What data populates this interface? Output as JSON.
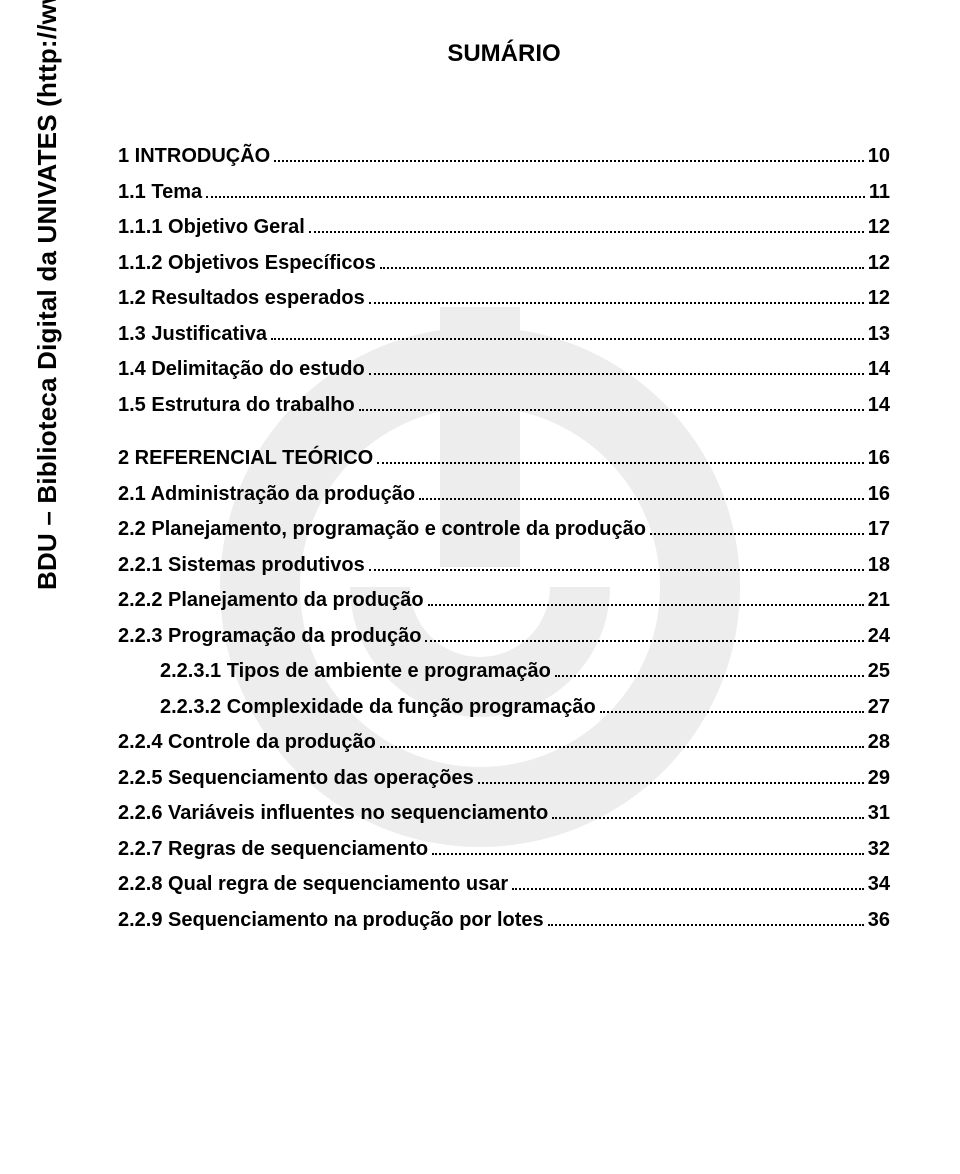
{
  "sidebar": {
    "text": "BDU – Biblioteca Digital da UNIVATES (http://www.univates.br/bdu)"
  },
  "title": "SUMÁRIO",
  "watermark": {
    "color": "#555555",
    "opacity": 0.1
  },
  "toc": [
    {
      "level": 0,
      "label": "1 INTRODUÇÃO",
      "page": "10",
      "gap_after": false
    },
    {
      "level": 1,
      "label": "1.1 Tema",
      "page": "11",
      "gap_after": false
    },
    {
      "level": 2,
      "label": "1.1.1 Objetivo Geral",
      "page": "12",
      "gap_after": false
    },
    {
      "level": 2,
      "label": "1.1.2 Objetivos Específicos",
      "page": "12",
      "gap_after": false
    },
    {
      "level": 1,
      "label": "1.2 Resultados esperados",
      "page": "12",
      "gap_after": false
    },
    {
      "level": 1,
      "label": "1.3 Justificativa",
      "page": "13",
      "gap_after": false
    },
    {
      "level": 1,
      "label": "1.4 Delimitação do estudo",
      "page": "14",
      "gap_after": false
    },
    {
      "level": 1,
      "label": "1.5 Estrutura do trabalho",
      "page": "14",
      "gap_after": true
    },
    {
      "level": 0,
      "label": "2 REFERENCIAL TEÓRICO",
      "page": "16",
      "gap_after": false
    },
    {
      "level": 1,
      "label": "2.1 Administração da produção",
      "page": "16",
      "gap_after": false
    },
    {
      "level": 1,
      "label": "2.2 Planejamento, programação e controle da produção",
      "page": "17",
      "gap_after": false
    },
    {
      "level": 2,
      "label": "2.2.1 Sistemas produtivos",
      "page": "18",
      "gap_after": false
    },
    {
      "level": 2,
      "label": "2.2.2 Planejamento da produção",
      "page": "21",
      "gap_after": false
    },
    {
      "level": 2,
      "label": "2.2.3 Programação da produção",
      "page": "24",
      "gap_after": false
    },
    {
      "level": 3,
      "label": "2.2.3.1 Tipos de ambiente e programação",
      "page": "25",
      "gap_after": false
    },
    {
      "level": 3,
      "label": "2.2.3.2 Complexidade da função programação",
      "page": "27",
      "gap_after": false
    },
    {
      "level": 2,
      "label": "2.2.4 Controle da produção",
      "page": "28",
      "gap_after": false
    },
    {
      "level": 2,
      "label": "2.2.5 Sequenciamento das operações",
      "page": "29",
      "gap_after": false
    },
    {
      "level": 2,
      "label": "2.2.6 Variáveis influentes no sequenciamento",
      "page": "31",
      "gap_after": false
    },
    {
      "level": 2,
      "label": "2.2.7 Regras de sequenciamento",
      "page": "32",
      "gap_after": false
    },
    {
      "level": 2,
      "label": "2.2.8 Qual regra de sequenciamento usar",
      "page": "34",
      "gap_after": false
    },
    {
      "level": 2,
      "label": "2.2.9 Sequenciamento na produção por lotes",
      "page": "36",
      "gap_after": false
    }
  ]
}
